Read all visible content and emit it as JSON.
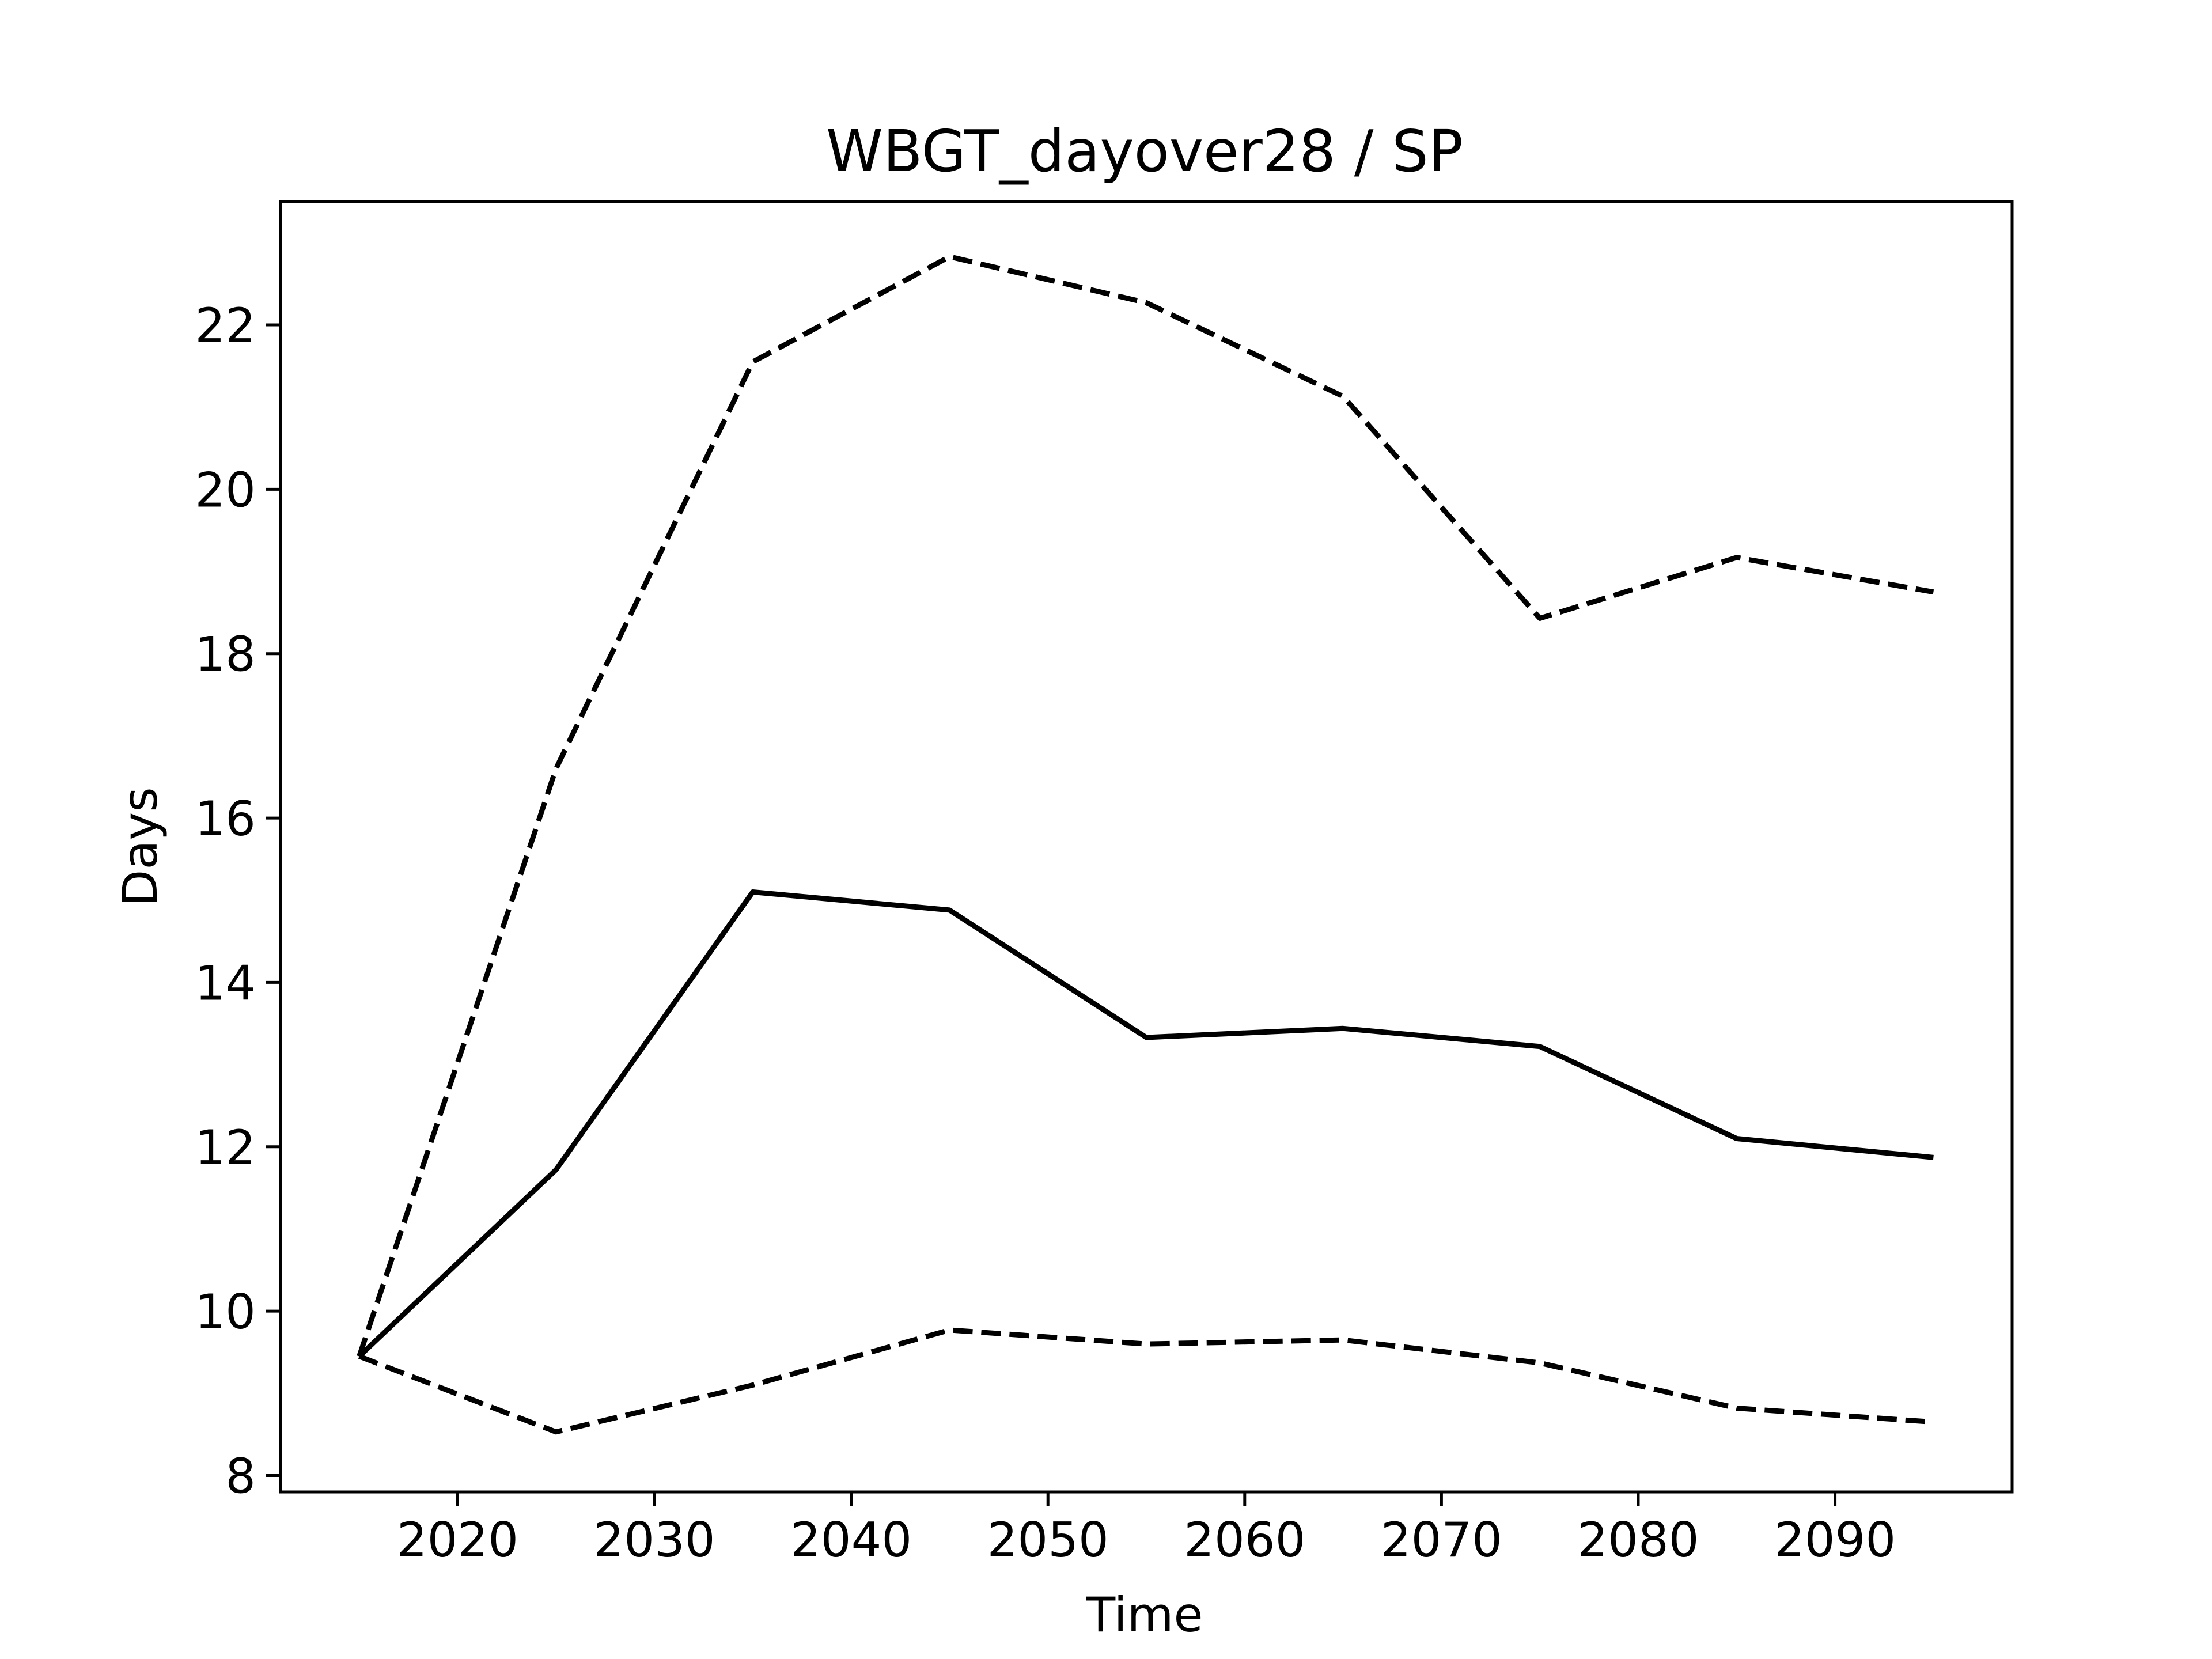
{
  "chart_data": {
    "type": "line",
    "title": "WBGT_dayover28 / SP",
    "xlabel": "Time",
    "ylabel": "Days",
    "xlim": [
      2011,
      2099
    ],
    "ylim": [
      7.8,
      23.5
    ],
    "x_ticks": [
      2020,
      2030,
      2040,
      2050,
      2060,
      2070,
      2080,
      2090
    ],
    "y_ticks": [
      8,
      10,
      12,
      14,
      16,
      18,
      20,
      22
    ],
    "grid": false,
    "x": [
      2015,
      2025,
      2035,
      2045,
      2055,
      2065,
      2075,
      2085,
      2095
    ],
    "series": [
      {
        "style": "solid",
        "color": "#000000",
        "values": [
          9.45,
          11.72,
          15.1,
          14.88,
          13.33,
          13.44,
          13.22,
          12.1,
          11.87
        ]
      },
      {
        "style": "dashed",
        "color": "#000000",
        "values": [
          9.45,
          16.6,
          21.55,
          22.83,
          22.27,
          21.13,
          18.43,
          19.17,
          18.75
        ]
      },
      {
        "style": "dashed",
        "color": "#000000",
        "values": [
          9.45,
          8.53,
          9.1,
          9.77,
          9.6,
          9.65,
          9.37,
          8.82,
          8.65
        ]
      }
    ]
  }
}
